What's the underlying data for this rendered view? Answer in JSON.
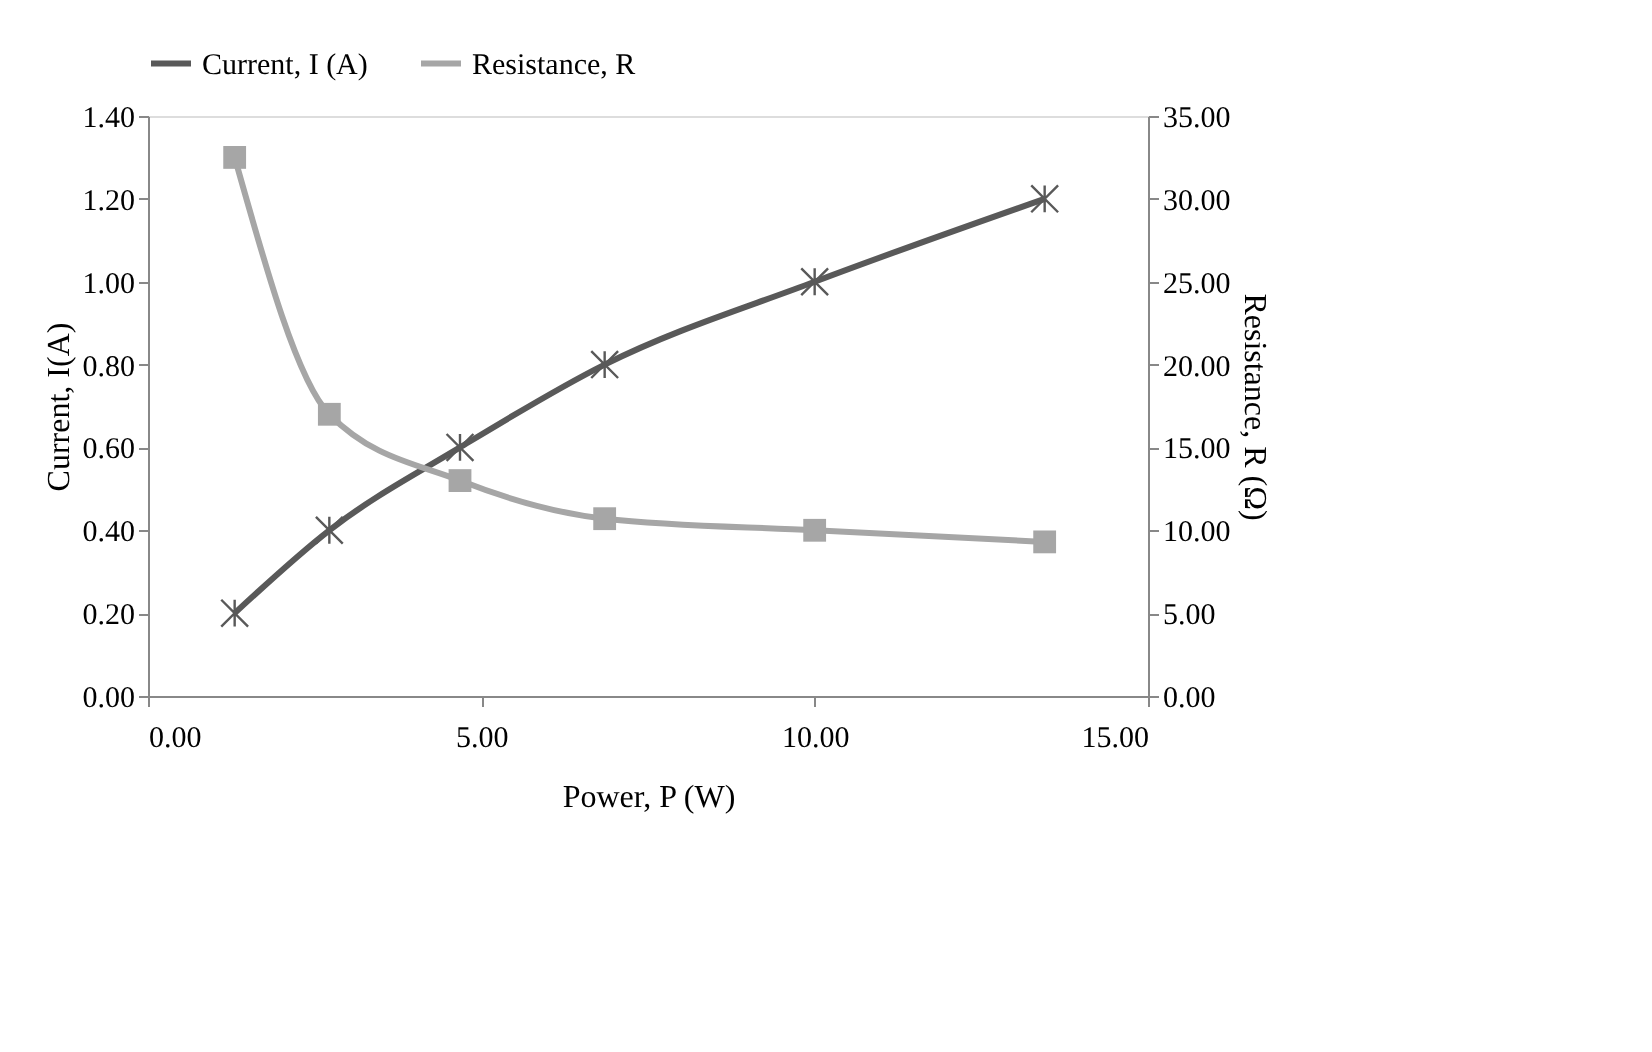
{
  "chart_data": {
    "type": "line",
    "xlabel": "Power, P (W)",
    "ylabel": "Current, I(A)",
    "y2label": "Resistance, R (Ω)",
    "xlim": [
      0,
      15
    ],
    "xticks": [
      {
        "value": 0,
        "label": "0.00"
      },
      {
        "value": 5,
        "label": "5.00"
      },
      {
        "value": 10,
        "label": "10.00"
      },
      {
        "value": 15,
        "label": "15.00"
      }
    ],
    "ylim": [
      0,
      1.4
    ],
    "yticks": [
      {
        "value": 0,
        "label": "0.00"
      },
      {
        "value": 0.2,
        "label": "0.20"
      },
      {
        "value": 0.4,
        "label": "0.40"
      },
      {
        "value": 0.6,
        "label": "0.60"
      },
      {
        "value": 0.8,
        "label": "0.80"
      },
      {
        "value": 1.0,
        "label": "1.00"
      },
      {
        "value": 1.2,
        "label": "1.20"
      },
      {
        "value": 1.4,
        "label": "1.40"
      }
    ],
    "y2lim": [
      0,
      35
    ],
    "y2ticks": [
      {
        "value": 0,
        "label": "0.00"
      },
      {
        "value": 5,
        "label": "5.00"
      },
      {
        "value": 10,
        "label": "10.00"
      },
      {
        "value": 15,
        "label": "15.00"
      },
      {
        "value": 20,
        "label": "20.00"
      },
      {
        "value": 25,
        "label": "25.00"
      },
      {
        "value": 30,
        "label": "30.00"
      },
      {
        "value": 35,
        "label": "35.00"
      }
    ],
    "grid": false,
    "legend": "top",
    "series": [
      {
        "name": "Current, I (A)",
        "color": "#595959",
        "marker": "cross",
        "x": [
          1.3,
          2.72,
          4.68,
          6.85,
          10.0,
          13.45
        ],
        "values": [
          0.2,
          0.4,
          0.6,
          0.8,
          1.0,
          1.2
        ]
      },
      {
        "name": "Resistance, R",
        "color": "#a6a6a6",
        "marker": "square",
        "axis": "y2",
        "x": [
          1.3,
          2.72,
          4.68,
          6.85,
          10.0,
          13.45
        ],
        "values": [
          32.5,
          17.0,
          13.0,
          10.7,
          10.0,
          9.3
        ]
      }
    ]
  }
}
